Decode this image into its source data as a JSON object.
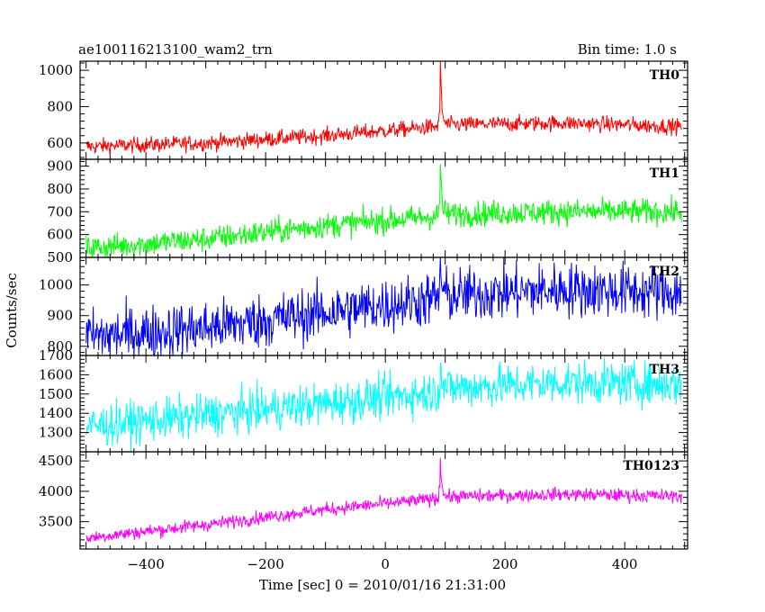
{
  "header": {
    "title": "ae100116213100_wam2_trn",
    "bin_time": "Bin time: 1.0 s"
  },
  "chart_data": {
    "type": "line",
    "xlabel": "Time [sec] 0 = 2010/01/16 21:31:00",
    "ylabel": "Counts/sec",
    "xlim": [
      -510,
      505
    ],
    "x_ticks": [
      -400,
      -200,
      0,
      200,
      400
    ],
    "x_tick_labels": [
      "−400",
      "−200",
      "0",
      "200",
      "400"
    ],
    "x_range": [
      -500,
      495
    ],
    "bin_time_s": 1.0,
    "burst_time_s": 92,
    "panels": [
      {
        "name": "TH0",
        "color": "#ff0000",
        "ylim": [
          510,
          1050
        ],
        "y_ticks": [
          600,
          800,
          1000
        ],
        "y_tick_labels": [
          "600",
          "800",
          "1000"
        ],
        "baseline": [
          [
            -500,
            580
          ],
          [
            -300,
            600
          ],
          [
            -100,
            640
          ],
          [
            85,
            690
          ],
          [
            100,
            700
          ],
          [
            300,
            710
          ],
          [
            495,
            690
          ]
        ],
        "noise": 22,
        "peak": 1050
      },
      {
        "name": "TH1",
        "color": "#00ff00",
        "ylim": [
          500,
          930
        ],
        "y_ticks": [
          500,
          600,
          700,
          800,
          900
        ],
        "y_tick_labels": [
          "500",
          "600",
          "700",
          "800",
          "900"
        ],
        "baseline": [
          [
            -500,
            540
          ],
          [
            -300,
            580
          ],
          [
            -100,
            640
          ],
          [
            85,
            680
          ],
          [
            100,
            690
          ],
          [
            300,
            700
          ],
          [
            495,
            700
          ]
        ],
        "noise": 28,
        "peak": 920
      },
      {
        "name": "TH2",
        "color": "#0000ff",
        "ylim": [
          770,
          1090
        ],
        "y_ticks": [
          800,
          900,
          1000
        ],
        "y_tick_labels": [
          "800",
          "900",
          "1000"
        ],
        "baseline": [
          [
            -500,
            830
          ],
          [
            -300,
            860
          ],
          [
            -100,
            910
          ],
          [
            85,
            955
          ],
          [
            100,
            965
          ],
          [
            300,
            985
          ],
          [
            495,
            975
          ]
        ],
        "noise": 45,
        "peak": 1090
      },
      {
        "name": "TH3",
        "color": "#00ffff",
        "ylim": [
          1200,
          1700
        ],
        "y_ticks": [
          1300,
          1400,
          1500,
          1600,
          1700
        ],
        "y_tick_labels": [
          "1300",
          "1400",
          "1500",
          "1600",
          "1700"
        ],
        "baseline": [
          [
            -500,
            1330
          ],
          [
            -300,
            1390
          ],
          [
            -100,
            1450
          ],
          [
            85,
            1510
          ],
          [
            100,
            1530
          ],
          [
            300,
            1560
          ],
          [
            495,
            1550
          ]
        ],
        "noise": 55,
        "peak": 1700
      },
      {
        "name": "TH0123",
        "color": "#ff00ff",
        "ylim": [
          3050,
          4650
        ],
        "y_ticks": [
          3500,
          4000,
          4500
        ],
        "y_tick_labels": [
          "3500",
          "4000",
          "4500"
        ],
        "baseline": [
          [
            -500,
            3230
          ],
          [
            -300,
            3450
          ],
          [
            -100,
            3700
          ],
          [
            85,
            3880
          ],
          [
            100,
            3910
          ],
          [
            300,
            3950
          ],
          [
            495,
            3920
          ]
        ],
        "noise": 55,
        "peak": 4600
      }
    ]
  }
}
